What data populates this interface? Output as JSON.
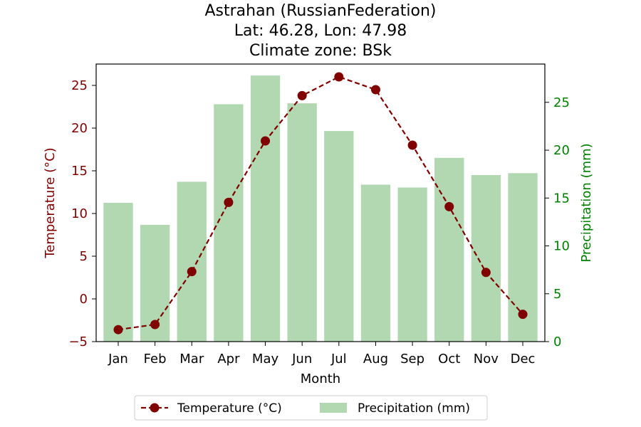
{
  "chart_data": {
    "type": "bar+line",
    "title_lines": [
      "Astrahan (RussianFederation)",
      "Lat: 46.28, Lon: 47.98",
      "Climate zone: BSk"
    ],
    "categories": [
      "Jan",
      "Feb",
      "Mar",
      "Apr",
      "May",
      "Jun",
      "Jul",
      "Aug",
      "Sep",
      "Oct",
      "Nov",
      "Dec"
    ],
    "xlabel": "Month",
    "temperature": {
      "name": "Temperature (°C)",
      "axis_label": "Temperature (°C)",
      "values": [
        -3.6,
        -3.0,
        3.2,
        11.3,
        18.5,
        23.8,
        26.0,
        24.5,
        18.0,
        10.8,
        3.1,
        -1.8
      ],
      "ylim": [
        -5,
        27.5
      ],
      "ticks": [
        -5,
        0,
        5,
        10,
        15,
        20,
        25
      ],
      "tick_labels": [
        "−5",
        "0",
        "5",
        "10",
        "15",
        "20",
        "25"
      ],
      "color": "#800000",
      "line_style": "dashed",
      "marker": "circle"
    },
    "precipitation": {
      "name": "Precipitation (mm)",
      "axis_label": "Precipitation (mm)",
      "values": [
        14.5,
        12.2,
        16.7,
        24.8,
        27.8,
        24.9,
        22.0,
        16.4,
        16.1,
        19.2,
        17.4,
        17.6
      ],
      "ylim": [
        0,
        29
      ],
      "ticks": [
        0,
        5,
        10,
        15,
        20,
        25
      ],
      "tick_labels": [
        "0",
        "5",
        "10",
        "15",
        "20",
        "25"
      ],
      "color": "#b2d8b2",
      "label_color": "#008000"
    },
    "legend": {
      "placement": "bottom-center",
      "entries": [
        "Temperature (°C)",
        "Precipitation (mm)"
      ]
    },
    "grid": false
  }
}
